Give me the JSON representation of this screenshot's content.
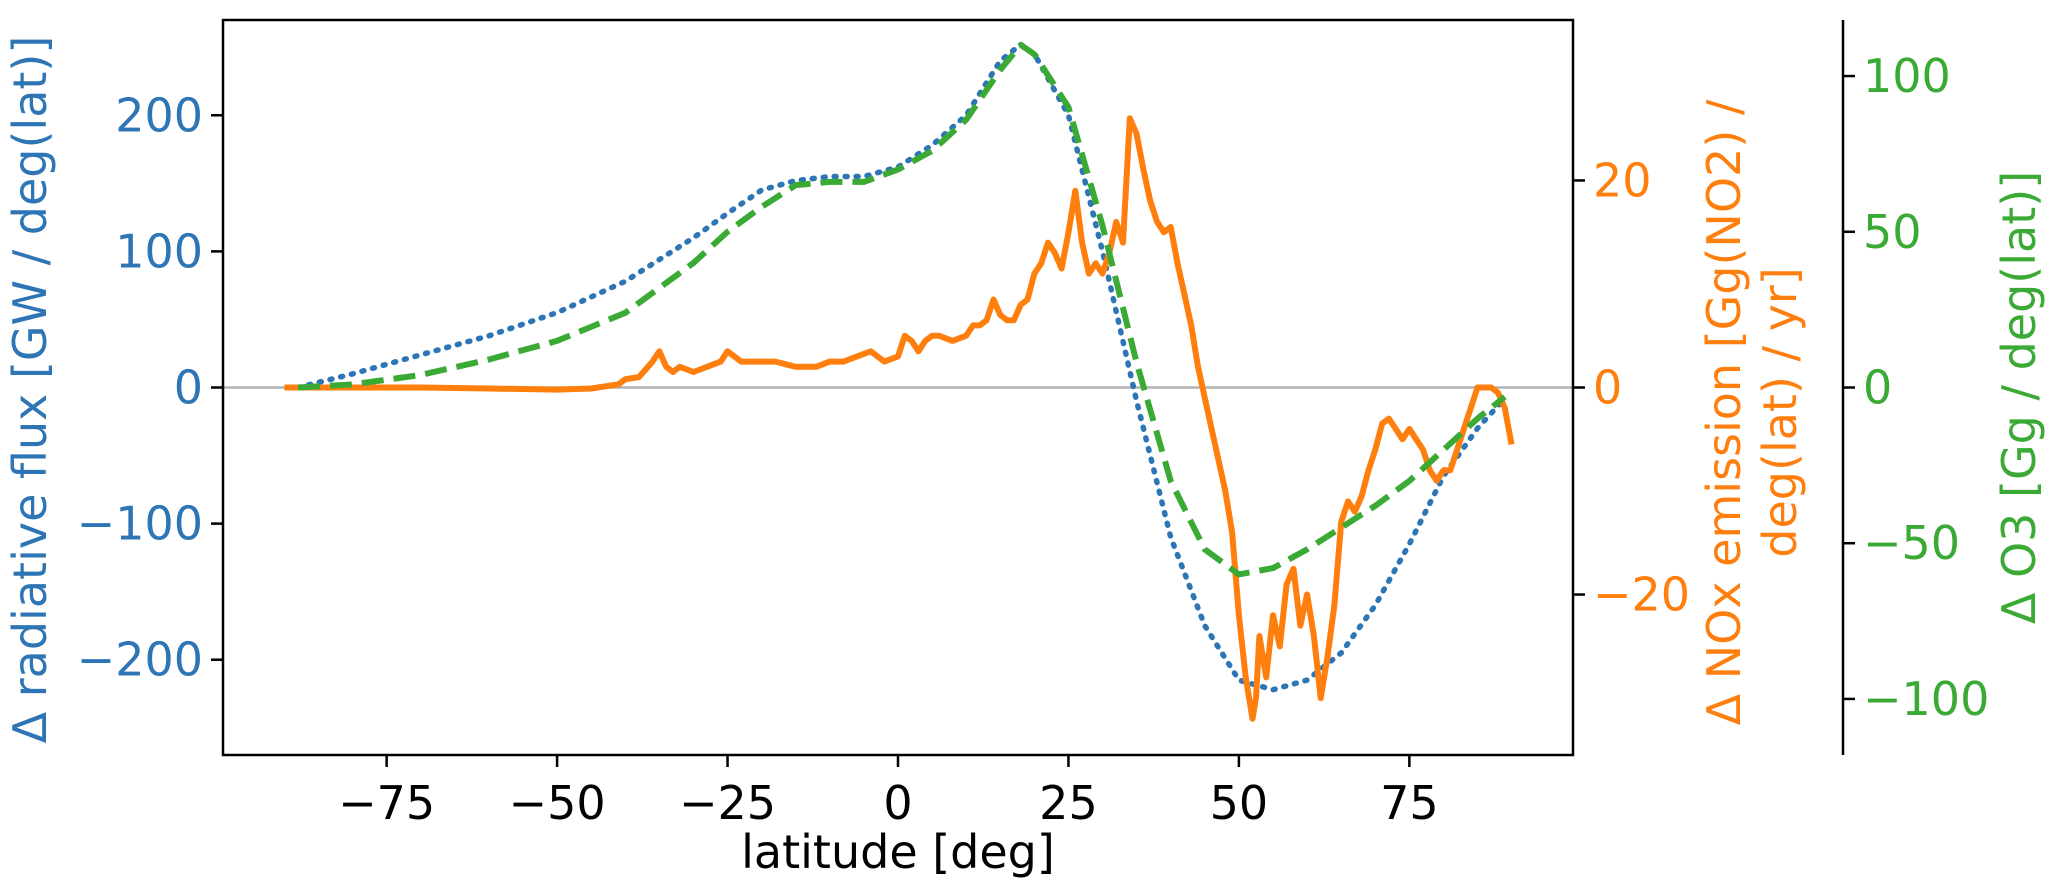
{
  "chart_data": {
    "type": "line",
    "xlabel": "latitude [deg]",
    "xlim": [
      -99,
      99
    ],
    "xticks": [
      -75,
      -50,
      -25,
      0,
      25,
      50,
      75
    ],
    "xtick_labels": [
      "−75",
      "−50",
      "−25",
      "0",
      "25",
      "50",
      "75"
    ],
    "grid": false,
    "zero_line": true,
    "axes": [
      {
        "id": "left",
        "label": "Δ radiative flux [GW / deg(lat)]",
        "color": "#2e75b6",
        "ylim": [
          -270,
          270
        ],
        "ticks": [
          -200,
          -100,
          0,
          100,
          200
        ],
        "tick_labels": [
          "−200",
          "−100",
          "0",
          "100",
          "200"
        ]
      },
      {
        "id": "right1",
        "label_lines": [
          "Δ NOx emission [Gg(NO2) /",
          "deg(lat) / yr]"
        ],
        "color": "#ff7f0e",
        "ylim": [
          -35.5,
          35.5
        ],
        "ticks": [
          -20,
          0,
          20
        ],
        "tick_labels": [
          "−20",
          "0",
          "20"
        ]
      },
      {
        "id": "right2",
        "label": "Δ O3 [Gg / deg(lat)]",
        "color": "#3aaa35",
        "ylim": [
          -118,
          118
        ],
        "ticks": [
          -100,
          -50,
          0,
          50,
          100
        ],
        "tick_labels": [
          "−100",
          "−50",
          "0",
          "50",
          "100"
        ]
      }
    ],
    "series": [
      {
        "axis": "left",
        "style": "dotted",
        "color": "#2e75b6",
        "x": [
          -88,
          -80,
          -70,
          -60,
          -50,
          -40,
          -30,
          -25,
          -20,
          -15,
          -10,
          -5,
          0,
          5,
          10,
          15,
          18,
          20,
          25,
          30,
          35,
          40,
          45,
          50,
          55,
          60,
          65,
          70,
          75,
          80,
          85,
          89
        ],
        "y": [
          0,
          10,
          24,
          38,
          55,
          78,
          110,
          128,
          145,
          152,
          155,
          155,
          162,
          178,
          200,
          240,
          252,
          245,
          200,
          100,
          -10,
          -110,
          -175,
          -215,
          -222,
          -215,
          -195,
          -160,
          -115,
          -65,
          -30,
          -8
        ]
      },
      {
        "axis": "right1",
        "style": "solid",
        "color": "#ff7f0e",
        "x": [
          -90,
          -80,
          -70,
          -60,
          -50,
          -45,
          -41,
          -40,
          -38,
          -36,
          -35,
          -34,
          -33,
          -32,
          -30,
          -28,
          -26,
          -25,
          -24,
          -23,
          -22,
          -20,
          -18,
          -15,
          -12,
          -10,
          -8,
          -6,
          -4,
          -3,
          -2,
          0,
          1,
          2,
          3,
          4,
          5,
          6,
          8,
          10,
          11,
          12,
          13,
          14,
          15,
          16,
          17,
          18,
          19,
          20,
          21,
          22,
          23,
          24,
          25,
          26,
          27,
          28,
          29,
          30,
          31,
          32,
          33,
          34,
          35,
          36,
          37,
          38,
          39,
          40,
          41,
          42,
          43,
          44,
          45,
          46,
          47,
          48,
          49,
          50,
          51,
          52,
          52.5,
          53,
          54,
          55,
          56,
          57,
          58,
          59,
          60,
          61,
          62,
          63,
          64,
          65,
          66,
          67,
          68,
          69,
          70,
          71,
          72,
          73,
          74,
          75,
          76,
          77,
          78,
          79,
          80,
          81,
          82,
          83,
          84,
          85,
          86,
          87,
          88,
          89,
          90
        ],
        "y": [
          0,
          0,
          0,
          -0.1,
          -0.2,
          -0.1,
          0.3,
          0.8,
          1,
          2.5,
          3.5,
          2,
          1.5,
          2,
          1.5,
          2,
          2.5,
          3.5,
          3,
          2.5,
          2.5,
          2.5,
          2.5,
          2,
          2,
          2.5,
          2.5,
          3,
          3.5,
          3,
          2.5,
          3,
          5,
          4.5,
          3.5,
          4.5,
          5,
          5,
          4.5,
          5,
          6,
          6,
          6.5,
          8.5,
          7,
          6.5,
          6.5,
          8,
          8.5,
          11,
          12,
          14,
          13,
          11.5,
          15,
          19,
          14,
          11,
          12,
          11,
          13,
          16,
          14,
          26,
          24.5,
          21,
          18,
          16,
          15,
          15.5,
          12,
          9,
          6,
          2,
          -1,
          -4,
          -7,
          -10,
          -14,
          -22,
          -28,
          -32,
          -30,
          -24,
          -28,
          -22,
          -25,
          -19,
          -17.5,
          -23,
          -20,
          -24,
          -30,
          -26,
          -21,
          -13,
          -11,
          -12,
          -10.5,
          -8,
          -6,
          -3.5,
          -3,
          -4,
          -5,
          -4,
          -5,
          -6,
          -8,
          -9,
          -8,
          -8,
          -6,
          -4,
          -2,
          0,
          0,
          0,
          -0.5,
          -2,
          -5.5
        ]
      },
      {
        "axis": "right2",
        "style": "dashed",
        "color": "#3aaa35",
        "x": [
          -88,
          -80,
          -70,
          -60,
          -50,
          -40,
          -30,
          -25,
          -20,
          -15,
          -10,
          -5,
          0,
          5,
          10,
          15,
          18,
          20,
          25,
          30,
          35,
          40,
          45,
          50,
          55,
          60,
          65,
          70,
          75,
          80,
          85,
          89
        ],
        "y": [
          0,
          1,
          4,
          9,
          15,
          24,
          40,
          50,
          58,
          65,
          66,
          66,
          70,
          76,
          86,
          102,
          110,
          107,
          90,
          52,
          8,
          -30,
          -52,
          -60,
          -58,
          -52,
          -45,
          -38,
          -30,
          -20,
          -10,
          -3
        ]
      }
    ]
  }
}
